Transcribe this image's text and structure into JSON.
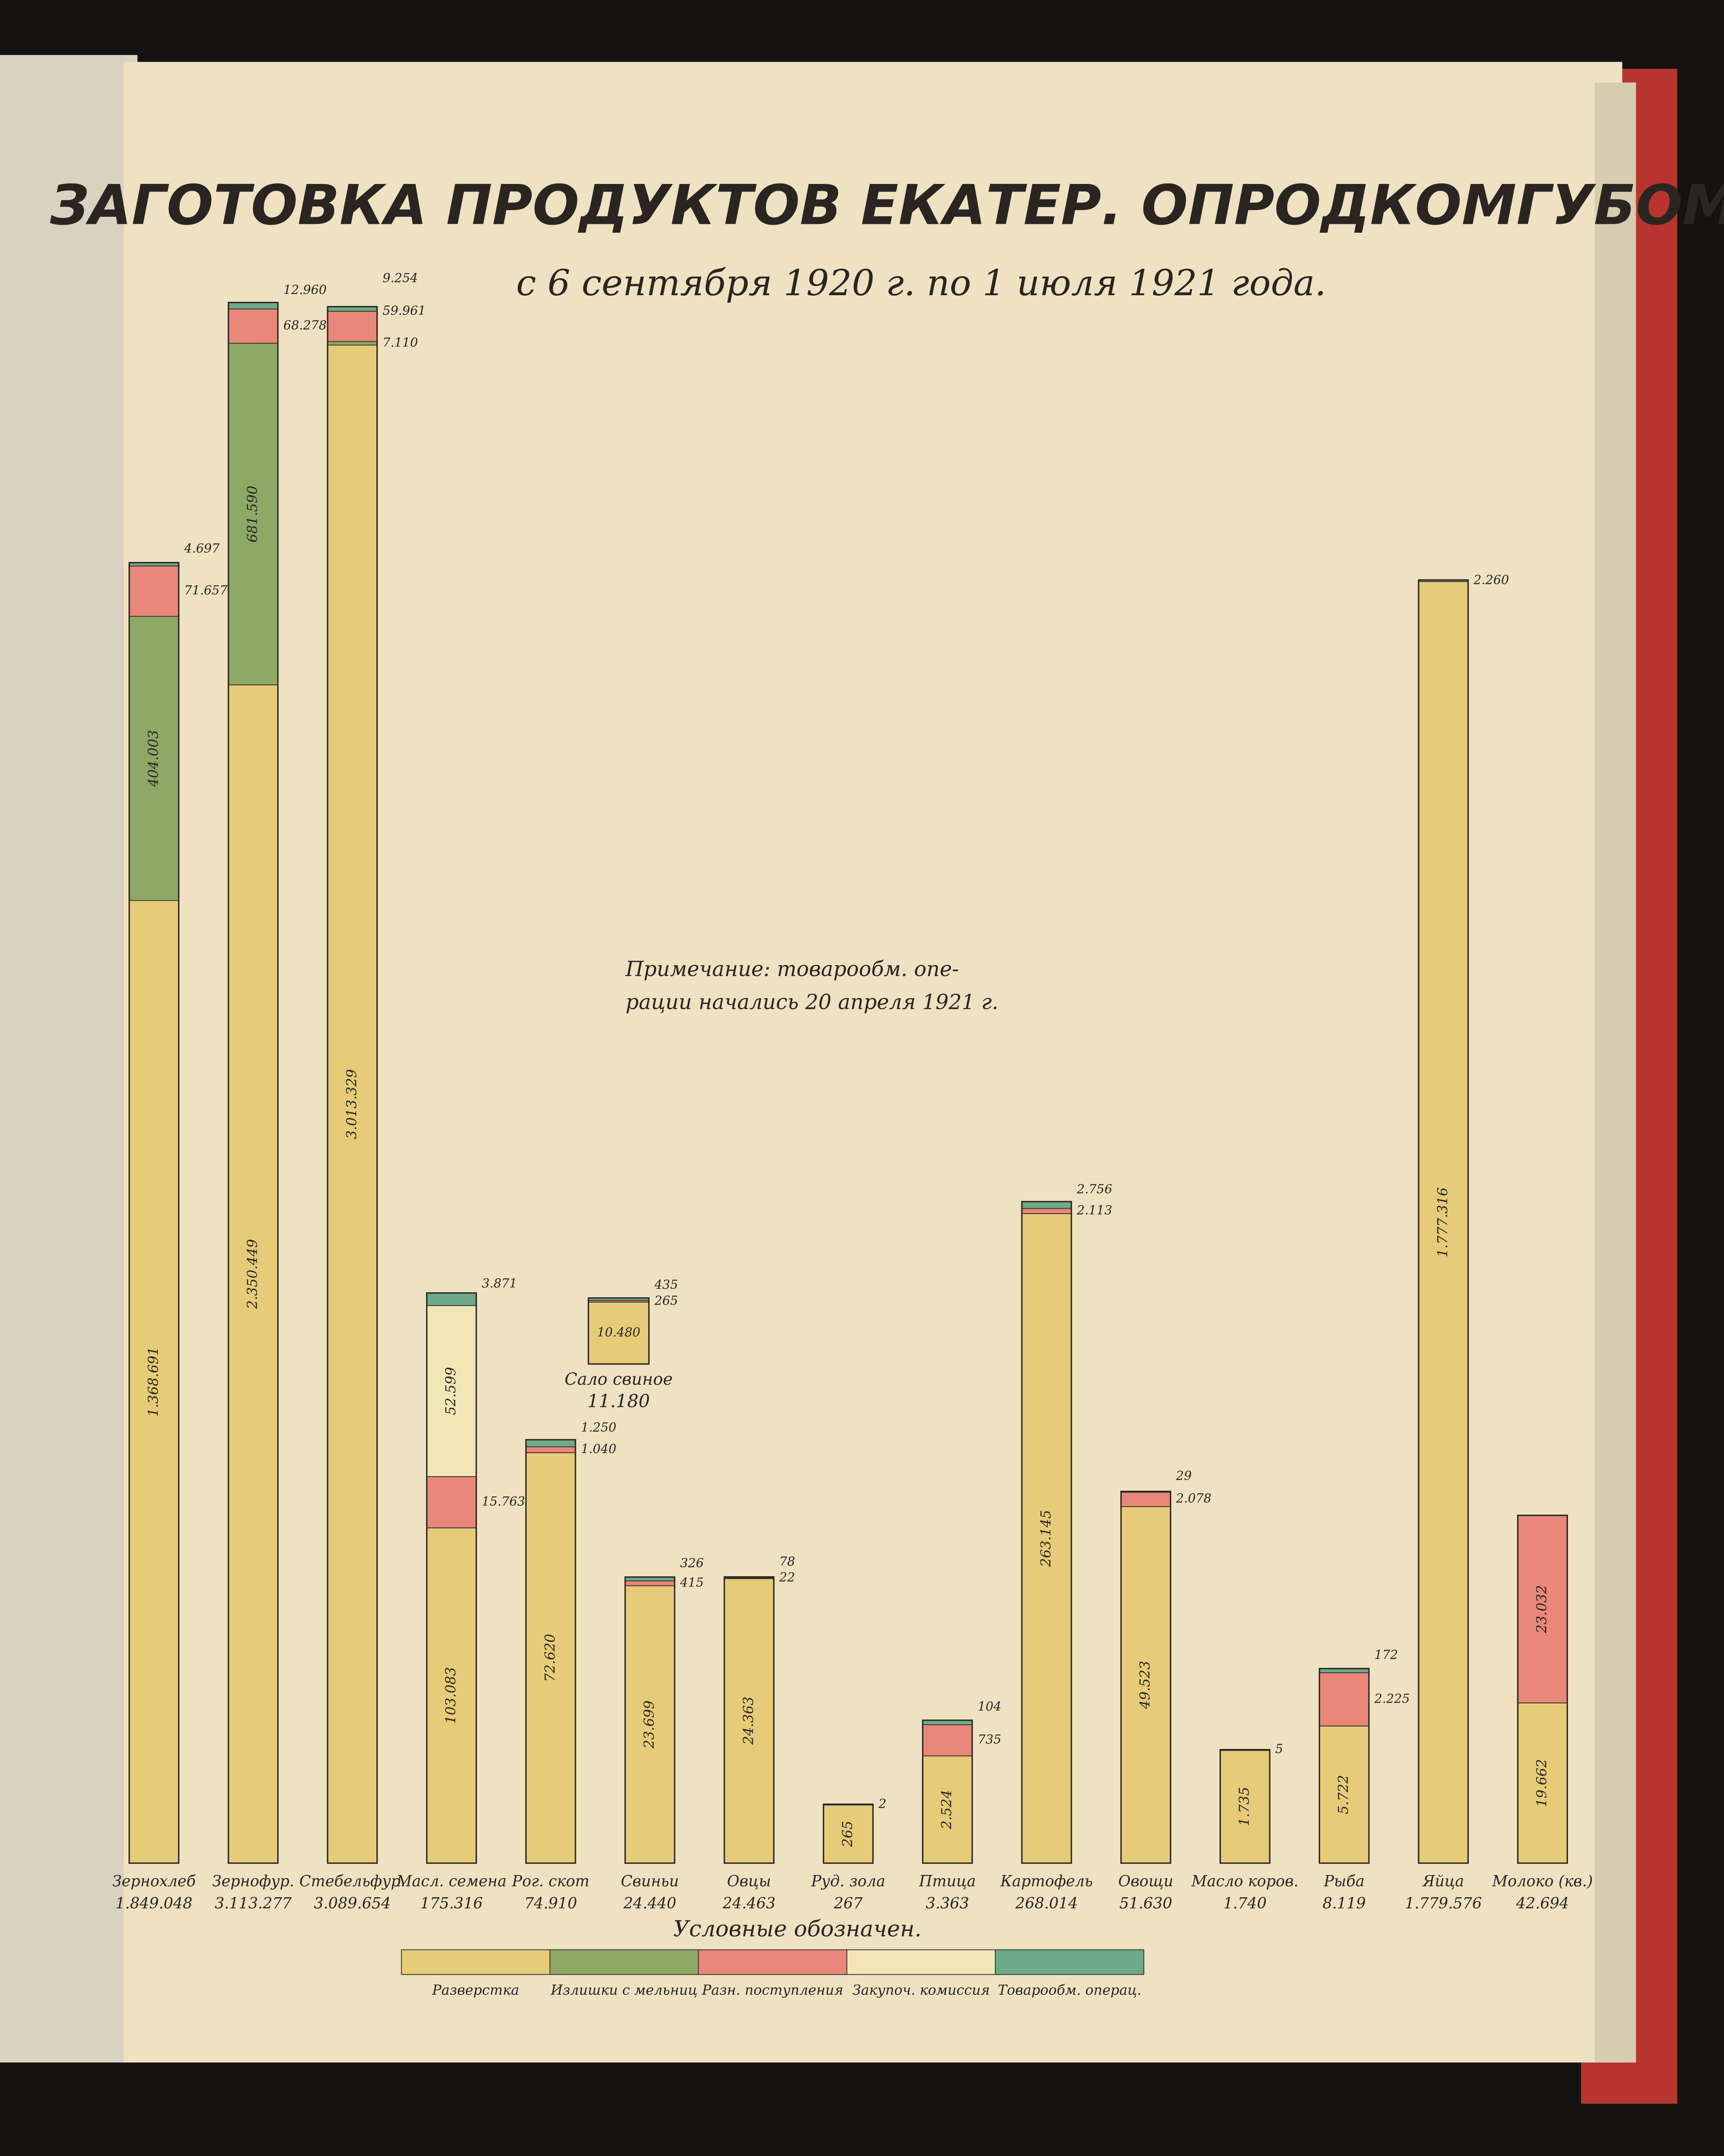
{
  "chart_data": {
    "type": "bar",
    "title": "ЗАГОТОВКА ПРОДУКТОВ ЕКАТЕР. ОПРОДКОМГУБОМ",
    "subtitle": "с 6 сентября 1920 г. по 1 июля 1921 года.",
    "annotation": [
      "Примечание: товарообм. опе-",
      "рации начались 20 апреля 1921 г."
    ],
    "legend_title": "Условные обозначен.",
    "categories": [
      "Зернохлеб",
      "Зернофур.",
      "Стебельфур.",
      "Масл. семена",
      "Рог. скот",
      "Свиньи",
      "Овцы",
      "Руд. зола",
      "Птица",
      "Картофель",
      "Овощи",
      "Масло коров.",
      "Рыба",
      "Яйца",
      "Молоко (кв.)"
    ],
    "totals": [
      1849048,
      3113277,
      3089654,
      175316,
      74910,
      24440,
      24463,
      267,
      3363,
      268014,
      51630,
      1740,
      8119,
      1779576,
      42694
    ],
    "total_labels": [
      "1.849.048",
      "3.113.277",
      "3.089.654",
      "175.316",
      "74.910",
      "24.440",
      "24.463",
      "267",
      "3.363",
      "268.014",
      "51.630",
      "1.740",
      "8.119",
      "1.779.576",
      "42.694"
    ],
    "series": [
      {
        "name": "Разверстка",
        "color": "#e6cc78",
        "values": [
          1368691,
          2350449,
          3013329,
          103083,
          72620,
          23699,
          24363,
          265,
          2524,
          263145,
          49523,
          1735,
          5722,
          1777316,
          19662
        ],
        "value_labels": [
          "1.368.691",
          "2.350.449",
          "3.013.329",
          "103.083",
          "72.620",
          "23.699",
          "24.363",
          "265",
          "2.524",
          "263.145",
          "49.523",
          "1.735",
          "5.722",
          "1.777.316",
          "19.662"
        ]
      },
      {
        "name": "Излишки с мельниц",
        "color": "#8ea866",
        "values": [
          404003,
          681590,
          7110,
          null,
          null,
          null,
          null,
          null,
          null,
          null,
          null,
          null,
          null,
          null,
          null
        ],
        "value_labels": [
          "404.003",
          "681.590",
          "7.110",
          null,
          null,
          null,
          null,
          null,
          null,
          null,
          null,
          null,
          null,
          null,
          null
        ]
      },
      {
        "name": "Разн. поступления",
        "color": "#e8877a",
        "values": [
          71657,
          68278,
          59961,
          15763,
          1040,
          415,
          null,
          null,
          735,
          2113,
          2078,
          null,
          2225,
          null,
          23032
        ],
        "value_labels": [
          "71.657",
          "68.278",
          "59.961",
          "15.763",
          "1.040",
          "415",
          null,
          null,
          "735",
          "2.113",
          "2.078",
          null,
          "2.225",
          null,
          "23.032"
        ]
      },
      {
        "name": "Закупоч. комиссия",
        "color": "#f1e7b6",
        "values": [
          null,
          null,
          null,
          52599,
          null,
          null,
          22,
          null,
          null,
          null,
          null,
          null,
          null,
          null,
          null
        ],
        "value_labels": [
          null,
          null,
          null,
          "52.599",
          null,
          null,
          "22",
          null,
          null,
          null,
          null,
          null,
          null,
          null,
          null
        ]
      },
      {
        "name": "Товарообм. операц.",
        "color": "#6dab88",
        "values": [
          4697,
          12960,
          9254,
          3871,
          1250,
          326,
          78,
          2,
          104,
          2756,
          29,
          5,
          172,
          2260,
          null
        ],
        "value_labels": [
          "4.697",
          "12.960",
          "9.254",
          "3.871",
          "1.250",
          "326",
          "78",
          "2",
          "104",
          "2.756",
          "29",
          "5",
          "172",
          "2.260",
          null
        ]
      }
    ],
    "inset": {
      "label": "Сало свиное",
      "total": 11180,
      "total_label": "11.180",
      "values": [
        10480,
        265,
        435
      ],
      "value_labels": [
        "10.480",
        "265",
        "435"
      ],
      "colors": [
        "#e6cc78",
        "#e8877a",
        "#6dab88"
      ]
    }
  }
}
